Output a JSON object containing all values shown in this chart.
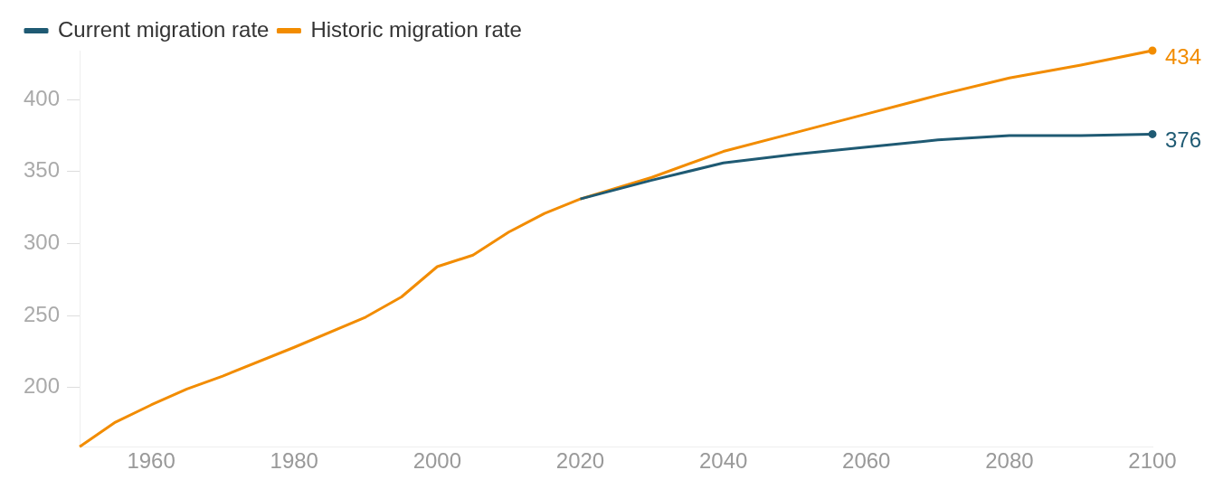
{
  "chart_data": {
    "type": "line",
    "x": [
      1950,
      1955,
      1960,
      1965,
      1970,
      1980,
      1990,
      1995,
      2000,
      2005,
      2010,
      2015,
      2020,
      2030,
      2040,
      2050,
      2060,
      2070,
      2080,
      2090,
      2100
    ],
    "series": [
      {
        "name": "Current migration rate",
        "color": "#1f5a73",
        "x": [
          2020,
          2030,
          2040,
          2050,
          2060,
          2070,
          2080,
          2090,
          2100
        ],
        "values": [
          331,
          344,
          356,
          362,
          367,
          372,
          375,
          375,
          376
        ],
        "value_labels": [
          null,
          null,
          null,
          null,
          null,
          null,
          null,
          null,
          "376"
        ]
      },
      {
        "name": "Historic migration rate",
        "color": "#f28c00",
        "values": [
          159,
          176,
          188,
          199,
          208,
          228,
          249,
          263,
          284,
          292,
          308,
          321,
          331,
          346,
          364,
          377,
          390,
          403,
          415,
          424,
          434
        ],
        "value_labels": [
          null,
          null,
          null,
          null,
          null,
          null,
          null,
          null,
          null,
          null,
          null,
          null,
          null,
          null,
          null,
          null,
          null,
          null,
          null,
          null,
          "434"
        ]
      }
    ],
    "xlim": [
      1950,
      2100
    ],
    "xticks": [
      1960,
      1980,
      2000,
      2020,
      2040,
      2060,
      2080,
      2100
    ],
    "ylim": [
      159,
      434
    ],
    "yticks": [
      200,
      250,
      300,
      350,
      400
    ],
    "grid": false,
    "legend": "top left"
  }
}
